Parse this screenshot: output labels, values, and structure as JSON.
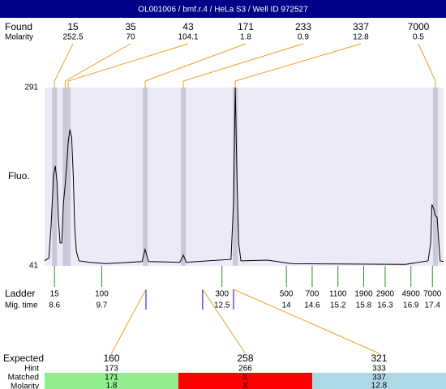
{
  "chart_data": {
    "type": "line",
    "title": "OL001006 / bmf.r.4 / HeLa S3 / Well ID 972527",
    "y_label": "Fluo.",
    "ylim": [
      41,
      291
    ],
    "yticks": [
      41,
      291
    ],
    "xlim": [
      8.37,
      17.66
    ],
    "xticks": [
      8.6,
      9.7,
      12.5,
      14,
      14.6,
      15.2,
      15.8,
      16.3,
      16.9,
      17.4
    ],
    "ladder_sizes": [
      15,
      100,
      300,
      500,
      700,
      1100,
      1900,
      2900,
      4900,
      7000
    ],
    "color": "#000000",
    "x": [
      8.37,
      8.47,
      8.52,
      8.58,
      8.62,
      8.66,
      8.69,
      8.73,
      8.77,
      8.81,
      8.85,
      8.89,
      8.92,
      8.96,
      9.0,
      9.04,
      9.07,
      9.11,
      9.17,
      9.41,
      9.79,
      10.64,
      10.71,
      10.79,
      11.52,
      11.6,
      11.67,
      12.71,
      12.77,
      12.81,
      12.85,
      12.89,
      12.94,
      13.56,
      14.13,
      16.77,
      17.3,
      17.36,
      17.39,
      17.43,
      17.47,
      17.51,
      17.55,
      17.58,
      17.66
    ],
    "values": [
      48,
      52,
      96,
      169,
      181,
      158,
      107,
      73,
      73,
      130,
      155,
      186,
      215,
      232,
      221,
      164,
      96,
      61,
      48,
      46,
      44,
      47,
      64,
      47,
      46,
      56,
      46,
      50,
      130,
      291,
      164,
      73,
      48,
      49,
      44,
      43,
      48,
      73,
      127,
      121,
      111,
      109,
      73,
      48,
      47
    ],
    "labels": {
      "found": "Found",
      "found_molarity": "Molarity",
      "ladder": "Ladder",
      "mig_time": "Mig. time",
      "expected": "Expected",
      "hint": "Hint",
      "matched": "Matched",
      "molarity": "Molarity"
    },
    "found": {
      "sizes": [
        15,
        35,
        43,
        171,
        233,
        337,
        7000
      ],
      "molarity": [
        252.5,
        70,
        104.1,
        1.8,
        0.9,
        12.8,
        0.5
      ],
      "x": [
        8.6,
        8.85,
        8.92,
        10.71,
        11.6,
        12.81,
        17.47
      ]
    },
    "expected": {
      "sizes": [
        160,
        258,
        321
      ],
      "x": [
        10.73,
        12.05,
        12.77
      ],
      "hint": [
        173,
        266,
        333
      ],
      "matched": [
        171,
        "X",
        337
      ],
      "molarity": [
        1.8,
        "X",
        12.8
      ],
      "colors": [
        "#90ee90",
        "#ff0000",
        "#add8e6"
      ]
    }
  }
}
